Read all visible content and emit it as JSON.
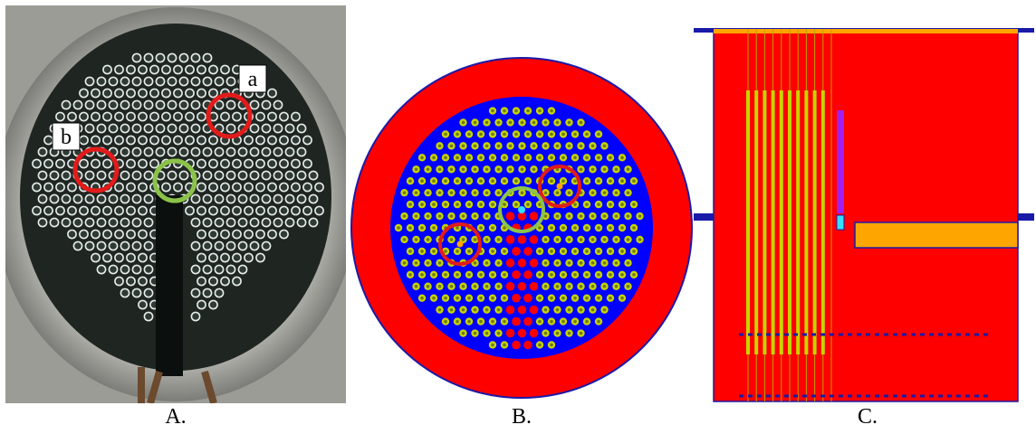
{
  "figure": {
    "panels": [
      {
        "id": "A",
        "caption": "A.",
        "markers": [
          {
            "label": "a",
            "color": "#e11b1b"
          },
          {
            "label": "b",
            "color": "#e11b1b"
          },
          {
            "label": "",
            "color": "#8bc34a"
          }
        ]
      },
      {
        "id": "B",
        "caption": "B."
      },
      {
        "id": "C",
        "caption": "C."
      }
    ]
  },
  "colors": {
    "reflector_red": "#ff0000",
    "water_blue": "#0000ff",
    "fuel_ring": "#c8d400",
    "fuel_core": "#6b7b1c",
    "highlight_red": "#e11b1b",
    "highlight_green": "#8bc34a",
    "center_cyan": "#33e0ff",
    "orange": "#ffa500",
    "purple": "#a020f0",
    "navy": "#1a1aa8"
  }
}
